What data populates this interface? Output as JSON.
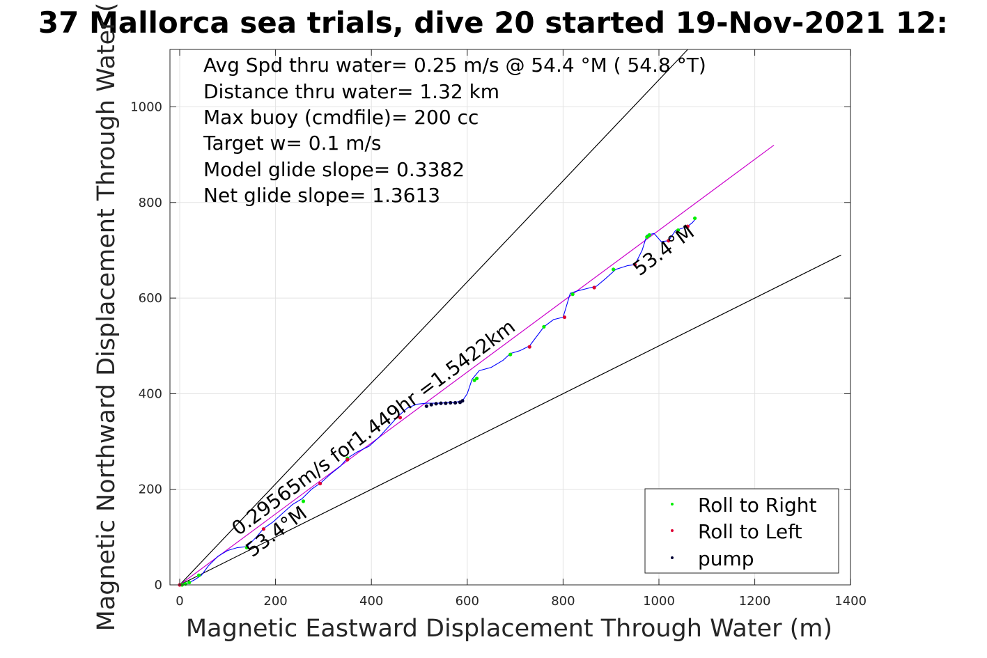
{
  "chart_data": {
    "type": "line",
    "title": "37 Mallorca sea trials, dive 20 started 19-Nov-2021 12:",
    "xlabel": "Magnetic Eastward Displacement Through Water (m)",
    "ylabel": "Magnetic Northward Displacement Through Water (",
    "xlim": [
      -20,
      1400
    ],
    "ylim": [
      0,
      1120
    ],
    "xticks": [
      "0",
      "200",
      "400",
      "600",
      "800",
      "1000",
      "1200",
      "1400"
    ],
    "yticks": [
      "0",
      "200",
      "400",
      "600",
      "800",
      "1000"
    ],
    "xtick_values": [
      0,
      200,
      400,
      600,
      800,
      1000,
      1200,
      1400
    ],
    "ytick_values": [
      0,
      200,
      400,
      600,
      800,
      1000
    ],
    "grid": true,
    "legend_position": "bottom-right",
    "stats": [
      "Avg Spd thru water=  0.25 m/s @  54.4 °M ( 54.8 °T)",
      "Distance thru water=  1.32 km",
      "Max buoy (cmdfile)= 200 cc",
      "Target w= 0.1 m/s",
      "Model glide slope= 0.3382",
      "Net glide slope= 1.3613"
    ],
    "annotations": {
      "velocity_label": "0.29565m/s for1.449hr =1.5422km",
      "heading_label_low": "53.4°M",
      "heading_label_high": "53.4°M"
    },
    "reference_lines": [
      {
        "name": "bound-upper",
        "color": "#000000",
        "x": [
          0,
          1060
        ],
        "y": [
          0,
          1120
        ]
      },
      {
        "name": "bound-lower",
        "color": "#000000",
        "x": [
          0,
          1380
        ],
        "y": [
          0,
          690
        ]
      },
      {
        "name": "net-heading",
        "color": "#cc00cc",
        "x": [
          0,
          1240
        ],
        "y": [
          0,
          920
        ]
      }
    ],
    "series": [
      {
        "name": "",
        "kind": "track",
        "color": "#0000ff",
        "x": [
          0,
          10,
          30,
          45,
          60,
          80,
          100,
          120,
          140,
          160,
          175,
          195,
          215,
          235,
          255,
          275,
          295,
          315,
          335,
          350,
          370,
          395,
          415,
          435,
          455,
          475,
          495,
          515,
          530,
          545,
          560,
          575,
          590,
          600,
          610,
          625,
          650,
          675,
          690,
          710,
          730,
          745,
          760,
          780,
          800,
          815,
          830,
          850,
          870,
          890,
          910,
          935,
          950,
          965,
          975,
          990,
          1005,
          1020,
          1035,
          1045,
          1060,
          1070,
          1078
        ],
        "y": [
          0,
          0,
          10,
          20,
          40,
          60,
          72,
          78,
          80,
          100,
          118,
          132,
          150,
          168,
          180,
          200,
          214,
          232,
          248,
          265,
          278,
          290,
          308,
          330,
          352,
          370,
          378,
          380,
          380,
          380,
          382,
          382,
          385,
          400,
          430,
          448,
          455,
          470,
          484,
          490,
          500,
          520,
          540,
          555,
          560,
          610,
          615,
          620,
          625,
          642,
          660,
          668,
          670,
          700,
          732,
          735,
          718,
          720,
          742,
          745,
          750,
          758,
          768
        ]
      },
      {
        "name": "Roll to Right",
        "kind": "points",
        "color": "#00ee00",
        "x": [
          5,
          12,
          20,
          40,
          140,
          258,
          350,
          615,
          620,
          690,
          760,
          820,
          905,
          975,
          980,
          1040,
          1075
        ],
        "y": [
          0,
          2,
          5,
          20,
          78,
          175,
          265,
          428,
          432,
          482,
          540,
          608,
          660,
          728,
          732,
          742,
          767
        ]
      },
      {
        "name": "Roll to Left",
        "kind": "points",
        "color": "#dd0033",
        "x": [
          0,
          175,
          293,
          350,
          460,
          730,
          803,
          865,
          950,
          1020,
          1060
        ],
        "y": [
          0,
          117,
          212,
          262,
          350,
          498,
          560,
          622,
          670,
          720,
          750
        ]
      },
      {
        "name": "pump",
        "kind": "points",
        "color": "#000033",
        "x": [
          515,
          525,
          535,
          545,
          555,
          565,
          575,
          585,
          590
        ],
        "y": [
          374,
          377,
          379,
          380,
          380,
          381,
          381,
          382,
          385
        ]
      }
    ]
  }
}
